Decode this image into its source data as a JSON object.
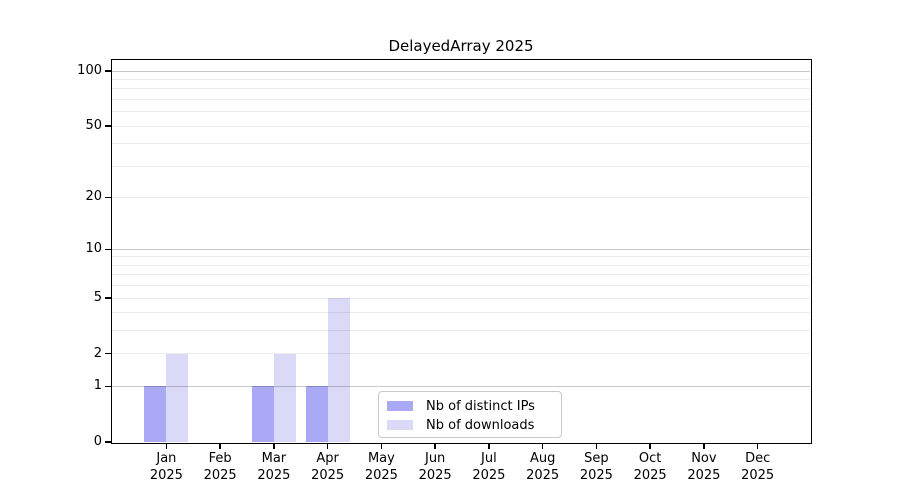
{
  "title": "DelayedArray 2025",
  "colors": {
    "background": "#ffffff",
    "axis": "#000000",
    "grid_minor": "rgba(0,0,0,0.075)",
    "grid_major": "rgba(0,0,0,0.21)",
    "legend_border": "#c9c9c9",
    "distinct_ips_bar": "#a9a9f5",
    "downloads_bar": "#dadaf8"
  },
  "chart_data": {
    "type": "bar",
    "title": "DelayedArray 2025",
    "xlabel": "",
    "ylabel": "",
    "categories": [
      "Jan",
      "Feb",
      "Mar",
      "Apr",
      "May",
      "Jun",
      "Jul",
      "Aug",
      "Sep",
      "Oct",
      "Nov",
      "Dec"
    ],
    "year_label": "2025",
    "series": [
      {
        "name": "Nb of distinct IPs",
        "key": "distinct-ips",
        "color": "#a9a9f5",
        "values": [
          1,
          0,
          1,
          1,
          0,
          0,
          0,
          0,
          0,
          0,
          0,
          0
        ]
      },
      {
        "name": "Nb of downloads",
        "key": "downloads",
        "color": "#dadaf8",
        "values": [
          2,
          0,
          2,
          5,
          0,
          0,
          0,
          0,
          0,
          0,
          0,
          0
        ]
      }
    ],
    "y_scale": "log10(1+y)",
    "ylim": [
      0,
      115
    ],
    "y_ticks": [
      0,
      1,
      2,
      5,
      10,
      20,
      50,
      100
    ],
    "y_gridlines_major": [
      1,
      10,
      100
    ],
    "y_gridlines_minor": [
      2,
      3,
      4,
      5,
      6,
      7,
      8,
      9,
      20,
      30,
      40,
      50,
      60,
      70,
      80,
      90
    ],
    "grid": "horizontal",
    "legend_position": "lower center, inside axes"
  }
}
